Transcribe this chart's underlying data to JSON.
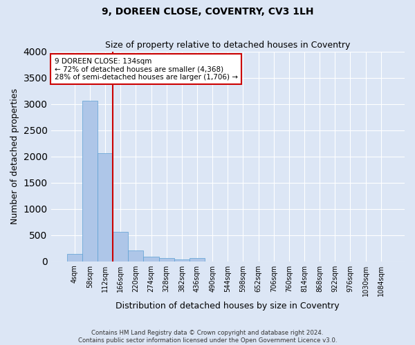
{
  "title": "9, DOREEN CLOSE, COVENTRY, CV3 1LH",
  "subtitle": "Size of property relative to detached houses in Coventry",
  "xlabel": "Distribution of detached houses by size in Coventry",
  "ylabel": "Number of detached properties",
  "bin_labels": [
    "4sqm",
    "58sqm",
    "112sqm",
    "166sqm",
    "220sqm",
    "274sqm",
    "328sqm",
    "382sqm",
    "436sqm",
    "490sqm",
    "544sqm",
    "598sqm",
    "652sqm",
    "706sqm",
    "760sqm",
    "814sqm",
    "868sqm",
    "922sqm",
    "976sqm",
    "1030sqm",
    "1084sqm"
  ],
  "bar_values": [
    140,
    3060,
    2060,
    560,
    200,
    80,
    55,
    40,
    55,
    0,
    0,
    0,
    0,
    0,
    0,
    0,
    0,
    0,
    0,
    0,
    0
  ],
  "bar_color": "#aec6e8",
  "bar_edge_color": "#5a9fd4",
  "vline_x_index": 2.5,
  "vline_color": "#cc0000",
  "ylim": [
    0,
    4000
  ],
  "annotation_text": "9 DOREEN CLOSE: 134sqm\n← 72% of detached houses are smaller (4,368)\n28% of semi-detached houses are larger (1,706) →",
  "annotation_box_edgecolor": "#cc0000",
  "footnote": "Contains HM Land Registry data © Crown copyright and database right 2024.\nContains public sector information licensed under the Open Government Licence v3.0.",
  "background_color": "#dce6f5",
  "grid_color": "#ffffff"
}
